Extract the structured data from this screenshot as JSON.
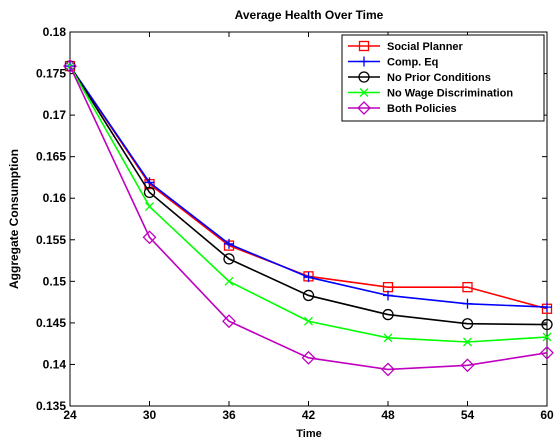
{
  "chart_data": {
    "type": "line",
    "title": "Average Health Over Time",
    "xlabel": "Time",
    "ylabel": "Aggregate Consumption",
    "x": [
      24,
      30,
      36,
      42,
      48,
      54,
      60
    ],
    "xlim": [
      24,
      60
    ],
    "ylim": [
      0.135,
      0.18
    ],
    "xticks": [
      "24",
      "30",
      "36",
      "42",
      "48",
      "54",
      "60"
    ],
    "yticks": [
      "0.135",
      "0.14",
      "0.145",
      "0.15",
      "0.155",
      "0.16",
      "0.165",
      "0.17",
      "0.175",
      "0.18"
    ],
    "legend_position": "top-right",
    "grid": false,
    "series": [
      {
        "name": "Social Planner",
        "color": "#ff0000",
        "marker": "square",
        "values": [
          0.1759,
          0.1617,
          0.1543,
          0.1506,
          0.1493,
          0.1493,
          0.1467
        ]
      },
      {
        "name": "Comp. Eq",
        "color": "#0000ff",
        "marker": "plus",
        "values": [
          0.1759,
          0.1619,
          0.1545,
          0.1505,
          0.1483,
          0.1473,
          0.1469
        ]
      },
      {
        "name": "No Prior Conditions",
        "color": "#000000",
        "marker": "circle",
        "values": [
          0.1759,
          0.1607,
          0.1527,
          0.1483,
          0.146,
          0.1449,
          0.1448
        ]
      },
      {
        "name": "No Wage Discrimination",
        "color": "#00ff00",
        "marker": "x",
        "values": [
          0.1759,
          0.159,
          0.15,
          0.1452,
          0.1432,
          0.1427,
          0.1433
        ]
      },
      {
        "name": "Both Policies",
        "color": "#bf00bf",
        "marker": "diamond",
        "values": [
          0.1759,
          0.1553,
          0.1452,
          0.1408,
          0.1394,
          0.1399,
          0.1414
        ]
      }
    ]
  }
}
